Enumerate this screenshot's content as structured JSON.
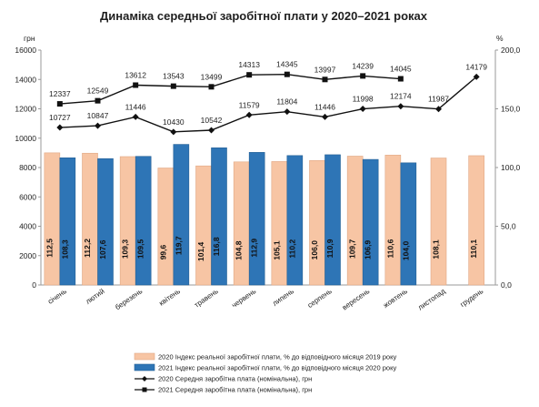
{
  "chart_data": {
    "type": "bar",
    "title": "Динаміка середньої заробітної плати у 2020–2021 роках",
    "y_left_unit": "грн",
    "y_right_unit": "%",
    "y_left_lim": [
      0,
      16000
    ],
    "y_left_ticks": [
      "0",
      "2000",
      "4000",
      "6000",
      "8000",
      "10000",
      "12000",
      "14000",
      "16000"
    ],
    "y_right_lim": [
      0,
      200
    ],
    "y_right_ticks": [
      "0,0",
      "50,0",
      "100,0",
      "150,0",
      "200,0"
    ],
    "categories": [
      "січень",
      "лютий",
      "березень",
      "квітень",
      "травень",
      "червень",
      "липень",
      "серпень",
      "вересень",
      "жовтень",
      "листопад",
      "грудень"
    ],
    "bar_series": [
      {
        "name": "2020 Індекс реальної заробітної плати, % до відповідного місяця 2019 року",
        "color": "#f7c5a4",
        "values": [
          112.5,
          112.2,
          109.3,
          99.6,
          101.4,
          104.8,
          105.1,
          106.0,
          109.7,
          110.6,
          108.1,
          110.1
        ],
        "labels": [
          "112,5",
          "112,2",
          "109,3",
          "99,6",
          "101,4",
          "104,8",
          "105,1",
          "106,0",
          "109,7",
          "110,6",
          "108,1",
          "110,1"
        ]
      },
      {
        "name": "2021 Індекс реальної заробітної плати, % до відповідного місяця 2020 року",
        "color": "#2e75b6",
        "values": [
          108.3,
          107.6,
          109.5,
          119.7,
          116.8,
          112.9,
          110.2,
          110.9,
          106.9,
          104.0,
          null,
          null
        ],
        "labels": [
          "108,3",
          "107,6",
          "109,5",
          "119,7",
          "116,8",
          "112,9",
          "110,2",
          "110,9",
          "106,9",
          "104,0",
          null,
          null
        ]
      }
    ],
    "line_series": [
      {
        "name": "2020 Середня заробітна плата (номінальна), грн",
        "marker": "diamond",
        "values": [
          10727,
          10847,
          11446,
          10430,
          10542,
          11579,
          11804,
          11446,
          11998,
          12174,
          11987,
          14179
        ],
        "labels": [
          "10727",
          "10847",
          "11446",
          "10430",
          "10542",
          "11579",
          "11804",
          "11446",
          "11998",
          "12174",
          "11987",
          "14179"
        ]
      },
      {
        "name": "2021 Середня заробітна плата (номінальна), грн",
        "marker": "square",
        "values": [
          12337,
          12549,
          13612,
          13543,
          13499,
          14313,
          14345,
          13997,
          14239,
          14045,
          null,
          null
        ],
        "labels": [
          "12337",
          "12549",
          "13612",
          "13543",
          "13499",
          "14313",
          "14345",
          "13997",
          "14239",
          "14045",
          null,
          null
        ]
      }
    ],
    "legend_position": "bottom",
    "grid": false
  }
}
